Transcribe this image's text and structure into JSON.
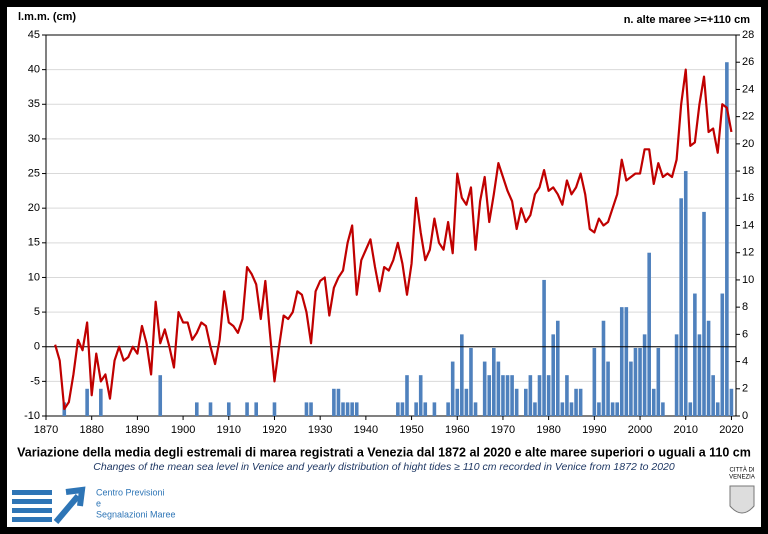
{
  "chart_data": {
    "type": "bar-line",
    "y_label": "l.m.m. (cm)",
    "y2_label": "n. alte maree >=+110 cm",
    "title": "Variazione della media degli estremali di marea registrati a Venezia dal 1872 al 2020 e alte maree superiori o uguali a 110 cm",
    "subtitle": "Changes of the mean sea level in Venice and yearly distribution of hight tides ≥ 110 cm recorded in Venice from 1872 to 2020",
    "org": [
      "Centro Previsioni",
      "e",
      "Segnalazioni Maree"
    ],
    "city": [
      "CITTÀ DI",
      "VENEZIA"
    ],
    "xlim": [
      1870,
      2021
    ],
    "xticks": [
      1870,
      1880,
      1890,
      1900,
      1910,
      1920,
      1930,
      1940,
      1950,
      1960,
      1970,
      1980,
      1990,
      2000,
      2010,
      2020
    ],
    "ylim": [
      -10,
      45
    ],
    "yticks": [
      -10,
      -5,
      0,
      5,
      10,
      15,
      20,
      25,
      30,
      35,
      40,
      45
    ],
    "y2lim": [
      0,
      28
    ],
    "y2ticks": [
      0,
      2,
      4,
      6,
      8,
      10,
      12,
      14,
      16,
      18,
      20,
      22,
      24,
      26,
      28
    ],
    "grid": true,
    "x": [
      1872,
      1873,
      1874,
      1875,
      1876,
      1877,
      1878,
      1879,
      1880,
      1881,
      1882,
      1883,
      1884,
      1885,
      1886,
      1887,
      1888,
      1889,
      1890,
      1891,
      1892,
      1893,
      1894,
      1895,
      1896,
      1897,
      1898,
      1899,
      1900,
      1901,
      1902,
      1903,
      1904,
      1905,
      1906,
      1907,
      1908,
      1909,
      1910,
      1911,
      1912,
      1913,
      1914,
      1915,
      1916,
      1917,
      1918,
      1919,
      1920,
      1921,
      1922,
      1923,
      1924,
      1925,
      1926,
      1927,
      1928,
      1929,
      1930,
      1931,
      1932,
      1933,
      1934,
      1935,
      1936,
      1937,
      1938,
      1939,
      1940,
      1941,
      1942,
      1943,
      1944,
      1945,
      1946,
      1947,
      1948,
      1949,
      1950,
      1951,
      1952,
      1953,
      1954,
      1955,
      1956,
      1957,
      1958,
      1959,
      1960,
      1961,
      1962,
      1963,
      1964,
      1965,
      1966,
      1967,
      1968,
      1969,
      1970,
      1971,
      1972,
      1973,
      1974,
      1975,
      1976,
      1977,
      1978,
      1979,
      1980,
      1981,
      1982,
      1983,
      1984,
      1985,
      1986,
      1987,
      1988,
      1989,
      1990,
      1991,
      1992,
      1993,
      1994,
      1995,
      1996,
      1997,
      1998,
      1999,
      2000,
      2001,
      2002,
      2003,
      2004,
      2005,
      2006,
      2007,
      2008,
      2009,
      2010,
      2011,
      2012,
      2013,
      2014,
      2015,
      2016,
      2017,
      2018,
      2019,
      2020
    ],
    "series": [
      {
        "name": "n. alte maree",
        "kind": "bar",
        "axis": "y2",
        "color": "#4f81bd",
        "values": [
          0,
          0,
          1,
          0,
          0,
          0,
          0,
          2,
          0,
          0,
          2,
          0,
          0,
          0,
          0,
          0,
          0,
          0,
          0,
          0,
          0,
          0,
          0,
          3,
          0,
          0,
          0,
          0,
          0,
          0,
          0,
          1,
          0,
          0,
          1,
          0,
          0,
          0,
          1,
          0,
          0,
          0,
          1,
          0,
          1,
          0,
          0,
          0,
          1,
          0,
          0,
          0,
          0,
          0,
          0,
          1,
          1,
          0,
          0,
          0,
          0,
          2,
          2,
          1,
          1,
          1,
          1,
          0,
          0,
          0,
          0,
          0,
          0,
          0,
          0,
          1,
          1,
          3,
          0,
          1,
          3,
          1,
          0,
          1,
          0,
          0,
          1,
          4,
          2,
          6,
          2,
          5,
          1,
          0,
          4,
          3,
          5,
          4,
          3,
          3,
          3,
          2,
          0,
          2,
          3,
          1,
          3,
          10,
          3,
          6,
          7,
          1,
          3,
          1,
          2,
          2,
          0,
          0,
          5,
          1,
          7,
          4,
          1,
          1,
          8,
          8,
          4,
          5,
          5,
          6,
          12,
          2,
          5,
          1,
          0,
          0,
          6,
          16,
          18,
          1,
          9,
          6,
          15,
          7,
          3,
          1,
          9,
          26,
          2
        ]
      },
      {
        "name": "l.m.m.",
        "kind": "line",
        "axis": "y",
        "color": "#c00000",
        "values": [
          0.3,
          -2,
          -9,
          -8,
          -4,
          1,
          -0.5,
          3.5,
          -7,
          -1,
          -5,
          -4,
          -7.5,
          -2,
          0,
          -2,
          -1.5,
          0,
          -1,
          3,
          0.5,
          -4,
          6.5,
          0.5,
          2.5,
          0,
          -3,
          5,
          3.5,
          3.5,
          1,
          2,
          3.5,
          3,
          0,
          -2.5,
          1,
          8,
          3.5,
          3,
          2,
          4,
          11.5,
          10.5,
          9,
          4,
          9.5,
          2,
          -5,
          0,
          4.5,
          4,
          5,
          8,
          7.5,
          5,
          0.5,
          8,
          9.5,
          10,
          4.5,
          8.5,
          10,
          11,
          15,
          17.5,
          7.5,
          12.5,
          14,
          15.5,
          11.5,
          8,
          11.5,
          11,
          12.5,
          15,
          12,
          7.5,
          12,
          21.5,
          16.5,
          12.5,
          14,
          18.5,
          15,
          14,
          18,
          13.5,
          25,
          21.5,
          20.5,
          23,
          14,
          21,
          24.5,
          18,
          22,
          26.5,
          24.5,
          22.5,
          21,
          17,
          20,
          18,
          19,
          22,
          23,
          25.5,
          22.5,
          23,
          22,
          20.5,
          24,
          22,
          23,
          25,
          22,
          17,
          16.5,
          18.5,
          17.5,
          18,
          20,
          22,
          27,
          24,
          24.5,
          25,
          25,
          28.5,
          28.5,
          23.5,
          26.5,
          24.5,
          25,
          24.5,
          27,
          35,
          40,
          29,
          29.5,
          35,
          39,
          31,
          31.5,
          28,
          35,
          34.5,
          31
        ]
      }
    ]
  }
}
